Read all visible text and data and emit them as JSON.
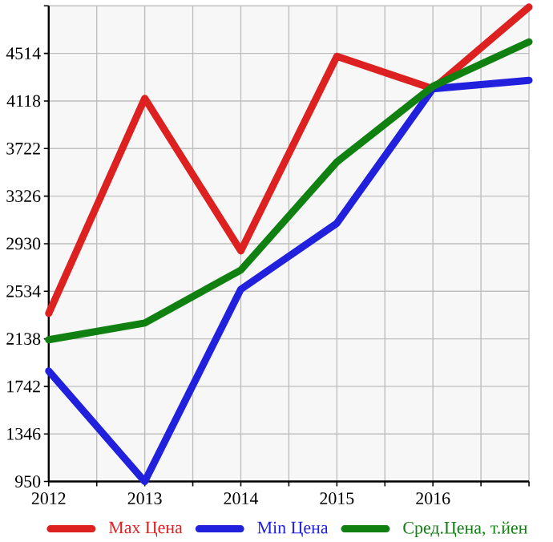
{
  "chart_data": {
    "type": "line",
    "x": [
      2012,
      2013,
      2014,
      2015,
      2016,
      2017
    ],
    "series": [
      {
        "name": "Max Цена",
        "color": "#dd2020",
        "values": [
          2350,
          4140,
          2870,
          4490,
          4220,
          4900
        ]
      },
      {
        "name": "Min Цена",
        "color": "#2020dd",
        "values": [
          1870,
          950,
          2550,
          3100,
          4220,
          4290
        ]
      },
      {
        "name": "Сред.Цена, т.йен",
        "color": "#108010",
        "values": [
          2130,
          2270,
          2710,
          3610,
          4240,
          4610
        ]
      }
    ],
    "xlim": [
      2012,
      2017
    ],
    "xticks": [
      2012,
      {
        "value": 2012.5,
        "label": null
      },
      2013,
      {
        "value": 2013.5,
        "label": null
      },
      2014,
      {
        "value": 2014.5,
        "label": null
      },
      2015,
      {
        "value": 2015.5,
        "label": null
      },
      2016,
      {
        "value": 2016.5,
        "label": null
      },
      {
        "value": 2017,
        "label": null
      }
    ],
    "ylim": [
      950,
      4910
    ],
    "yticks": [
      950,
      1346,
      1742,
      2138,
      2534,
      2930,
      3326,
      3722,
      4118,
      4514,
      {
        "value": 4910,
        "label": null
      }
    ],
    "grid": true,
    "legend": "bottom",
    "marker": "none",
    "line_style": "solid"
  }
}
